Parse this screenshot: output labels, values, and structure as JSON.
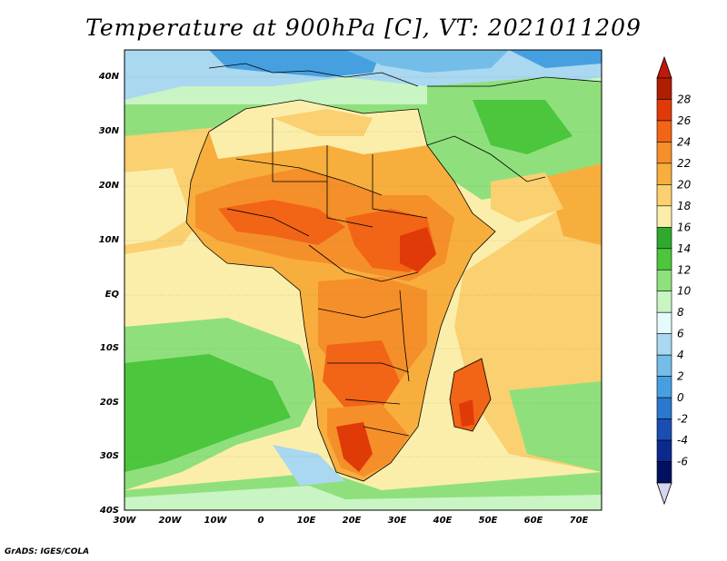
{
  "title": "Temperature at 900hPa [C], VT: 2021011209",
  "credit": "GrADS: IGES/COLA",
  "map": {
    "lat_labels": [
      "40N",
      "30N",
      "20N",
      "10N",
      "EQ",
      "10S",
      "20S",
      "30S",
      "40S"
    ],
    "lon_labels": [
      "30W",
      "20W",
      "10W",
      "0",
      "10E",
      "20E",
      "30E",
      "40E",
      "50E",
      "60E",
      "70E"
    ]
  },
  "colorbar": {
    "labels": [
      "28",
      "26",
      "24",
      "22",
      "20",
      "18",
      "16",
      "14",
      "12",
      "10",
      "8",
      "6",
      "4",
      "2",
      "0",
      "-2",
      "-4",
      "-6"
    ],
    "colors": [
      "#b01e00",
      "#e03a08",
      "#f26416",
      "#f58f2a",
      "#f7ae3d",
      "#fad070",
      "#fbeeaa",
      "#2faa2f",
      "#4cc63c",
      "#8fe07c",
      "#c8f5c3",
      "#e3fbfb",
      "#a9d8f0",
      "#73bde8",
      "#46a0e0",
      "#2a78cf",
      "#1b4eb3",
      "#0c2a8e",
      "#021060"
    ],
    "top_arrow_color": "#c0180a",
    "bottom_arrow_color": "#d6d6ee"
  }
}
